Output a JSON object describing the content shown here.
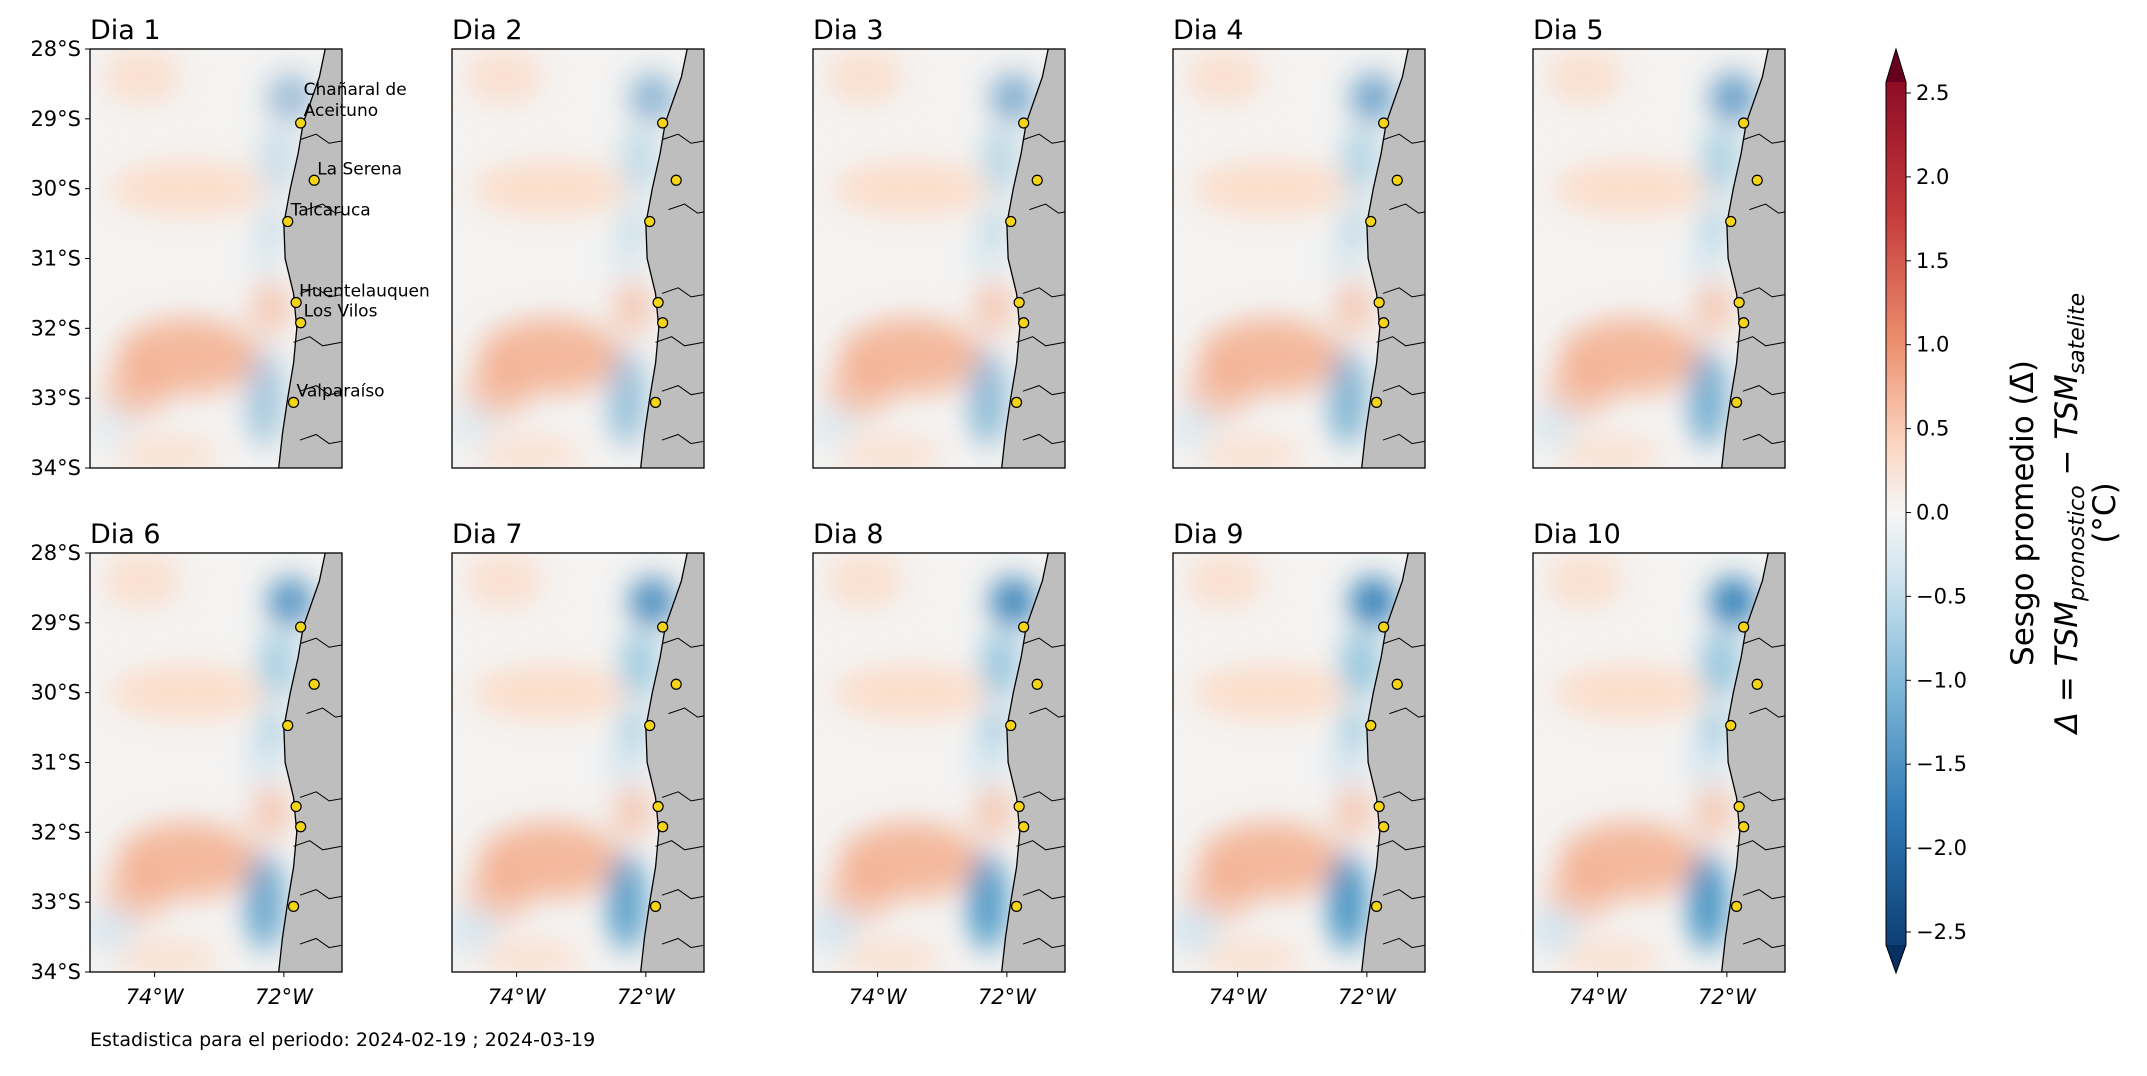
{
  "chart_data": {
    "type": "map",
    "panels": [
      {
        "title": "Dia 1"
      },
      {
        "title": "Dia 2"
      },
      {
        "title": "Dia 3"
      },
      {
        "title": "Dia 4"
      },
      {
        "title": "Dia 5"
      },
      {
        "title": "Dia 6"
      },
      {
        "title": "Dia 7"
      },
      {
        "title": "Dia 8"
      },
      {
        "title": "Dia 9"
      },
      {
        "title": "Dia 10"
      }
    ],
    "xlim": [
      -75,
      -71.1
    ],
    "ylim": [
      -34,
      -28
    ],
    "xticks": [
      {
        "value": -74,
        "label": "74°W"
      },
      {
        "value": -72,
        "label": "72°W"
      }
    ],
    "yticks": [
      {
        "value": -28,
        "label": "28°S"
      },
      {
        "value": -29,
        "label": "29°S"
      },
      {
        "value": -30,
        "label": "30°S"
      },
      {
        "value": -31,
        "label": "31°S"
      },
      {
        "value": -32,
        "label": "32°S"
      },
      {
        "value": -33,
        "label": "33°S"
      },
      {
        "value": -34,
        "label": "34°S"
      }
    ],
    "cities": [
      {
        "name": "Chañaral de Aceituno",
        "lat": -29.06,
        "lon": -71.74
      },
      {
        "name": "La Serena",
        "lat": -29.88,
        "lon": -71.53
      },
      {
        "name": "Talcaruca",
        "lat": -30.47,
        "lon": -71.94
      },
      {
        "name": "Huentelauquen",
        "lat": -31.63,
        "lon": -71.81
      },
      {
        "name": "Los Vilos",
        "lat": -31.92,
        "lon": -71.74
      },
      {
        "name": "Valparaíso",
        "lat": -33.06,
        "lon": -71.85
      }
    ],
    "marker_color": "#f5d516",
    "land_color": "#bebebe",
    "colorbar": {
      "lim": [
        -2.5,
        2.5
      ],
      "ticks": [
        {
          "value": 2.5,
          "label": "2.5"
        },
        {
          "value": 2.0,
          "label": "2.0"
        },
        {
          "value": 1.5,
          "label": "1.5"
        },
        {
          "value": 1.0,
          "label": "1.0"
        },
        {
          "value": 0.5,
          "label": "0.5"
        },
        {
          "value": 0.0,
          "label": "0.0"
        },
        {
          "value": -0.5,
          "label": "−0.5"
        },
        {
          "value": -1.0,
          "label": "−1.0"
        },
        {
          "value": -1.5,
          "label": "−1.5"
        },
        {
          "value": -2.0,
          "label": "−2.0"
        },
        {
          "value": -2.5,
          "label": "−2.5"
        }
      ],
      "label_line1": "Sesgo promedio (Δ̄)",
      "label_line2": [
        "Δ = TSM",
        "pronostico",
        " − TSM",
        "satelite"
      ],
      "label_line3": "(°C)"
    },
    "note": "Estadistica para el periodo: 2024-02-19 ; 2024-03-19"
  }
}
